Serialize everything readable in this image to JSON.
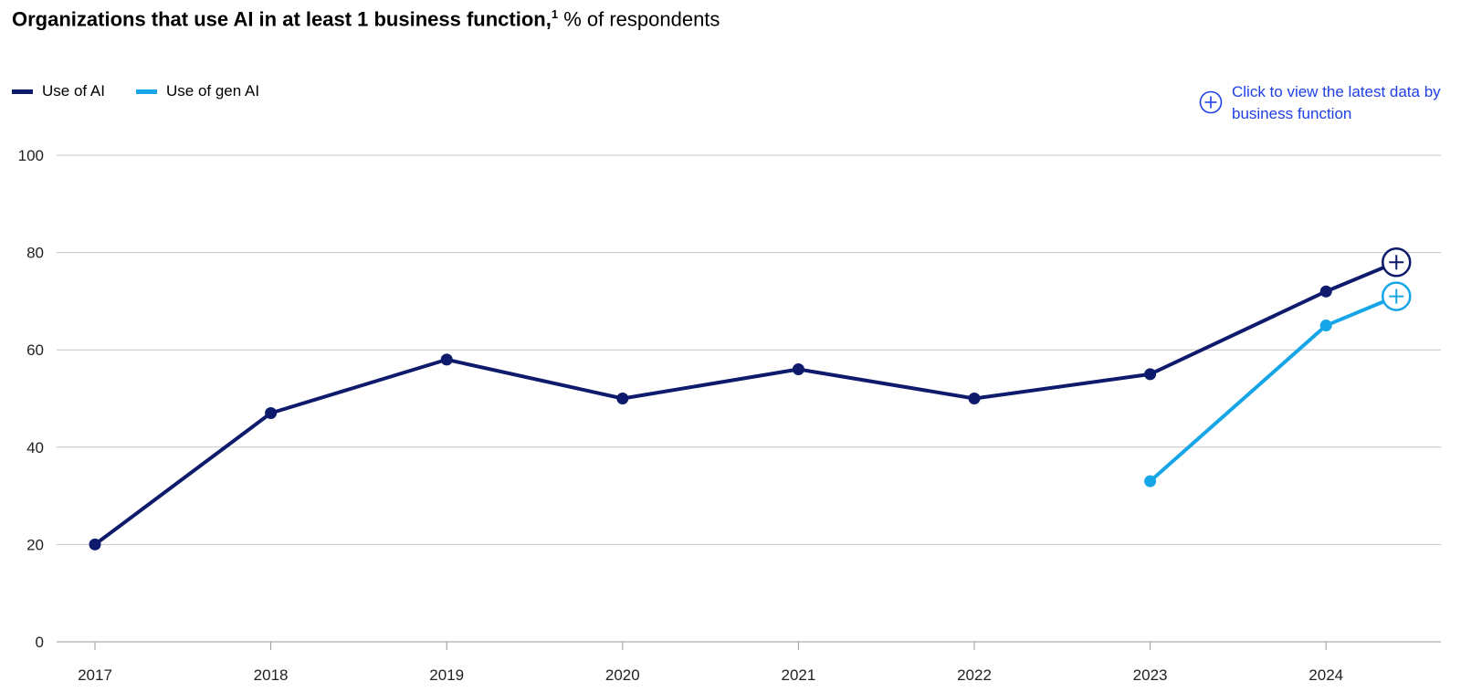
{
  "title": {
    "main": "Organizations that use AI in at least 1 business function,",
    "footnote": "1",
    "unit": "% of respondents"
  },
  "legend": [
    {
      "label": "Use of AI",
      "color": "#0e1a6b"
    },
    {
      "label": "Use of gen AI",
      "color": "#16a6e8"
    }
  ],
  "cta": {
    "label": "Click to view the latest data by business function",
    "icon": "plus-circle-icon",
    "color": "#1f40e6"
  },
  "chart_data": {
    "type": "line",
    "x_ticks": [
      "2017",
      "2018",
      "2019",
      "2020",
      "2021",
      "2022",
      "2023",
      "2024"
    ],
    "ylim": [
      0,
      100
    ],
    "y_ticks": [
      0,
      20,
      40,
      60,
      80,
      100
    ],
    "grid": true,
    "legend_position": "top-left",
    "series": [
      {
        "name": "Use of AI",
        "color": "#0e1a6b",
        "points": [
          {
            "x": 2017,
            "y": 20
          },
          {
            "x": 2018,
            "y": 47
          },
          {
            "x": 2019,
            "y": 58
          },
          {
            "x": 2020,
            "y": 50
          },
          {
            "x": 2021,
            "y": 56
          },
          {
            "x": 2022,
            "y": 50
          },
          {
            "x": 2023,
            "y": 55
          },
          {
            "x": 2024,
            "y": 72
          },
          {
            "x": 2024.4,
            "y": 78,
            "latest": true
          }
        ]
      },
      {
        "name": "Use of gen AI",
        "color": "#16a6e8",
        "points": [
          {
            "x": 2023,
            "y": 33
          },
          {
            "x": 2024,
            "y": 65
          },
          {
            "x": 2024.4,
            "y": 71,
            "latest": true
          }
        ]
      }
    ]
  }
}
